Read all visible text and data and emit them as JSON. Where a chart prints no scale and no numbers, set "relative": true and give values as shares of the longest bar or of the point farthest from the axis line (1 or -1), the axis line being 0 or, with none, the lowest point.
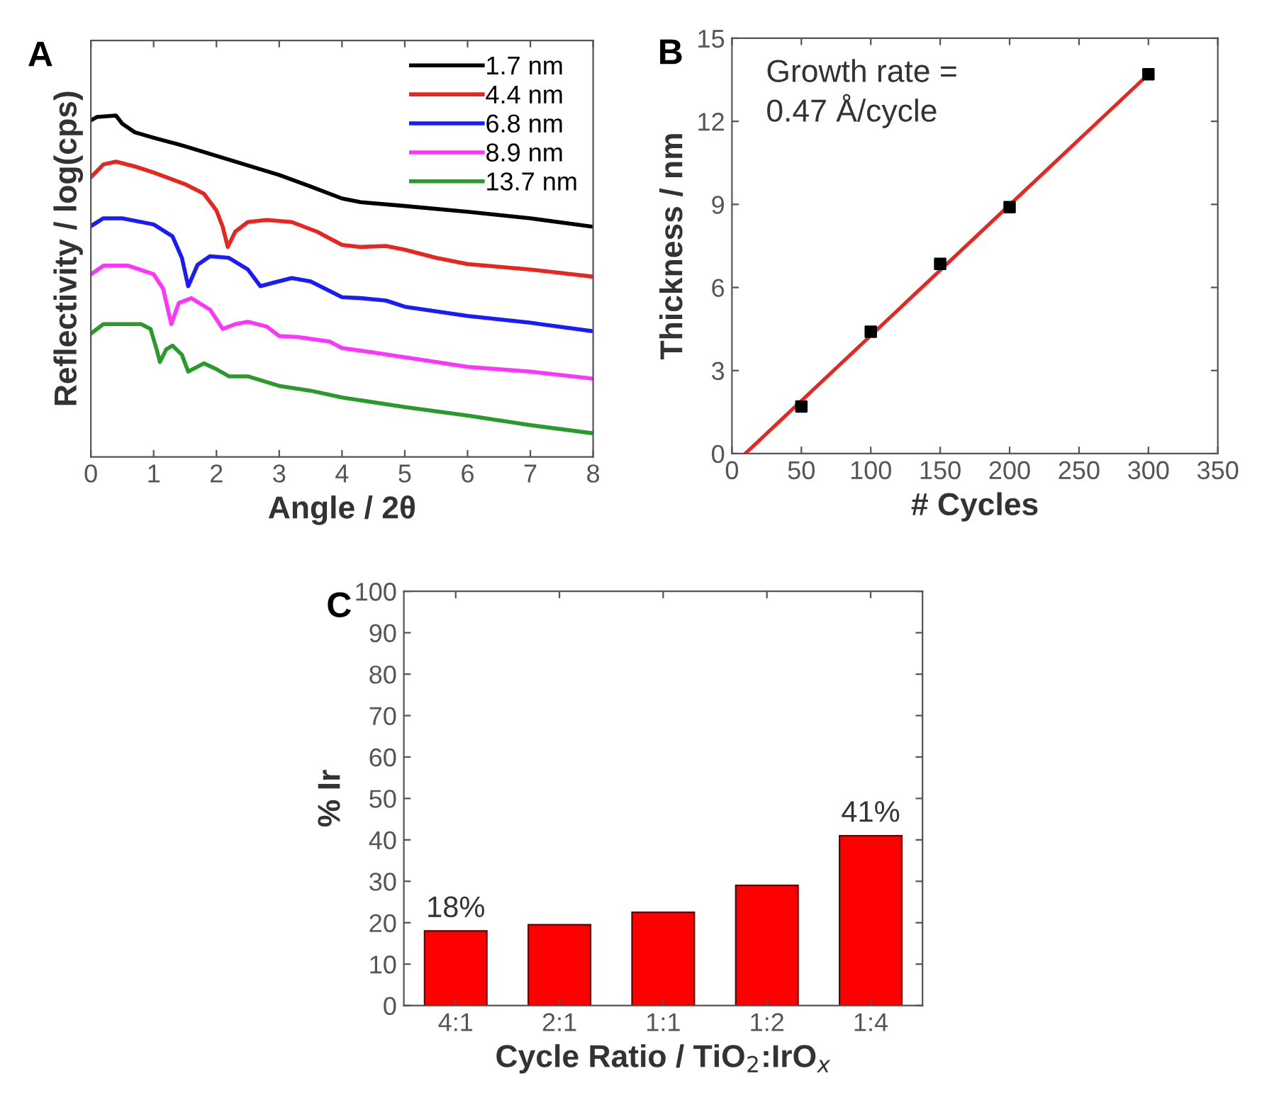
{
  "chart_data": [
    {
      "type": "line",
      "title": "A",
      "xlabel": "Angle / 2θ",
      "ylabel": "Reflectivity / log(cps)",
      "relative": true,
      "tick_labels": "x",
      "xlim": [
        0,
        8
      ],
      "xticks": [
        0,
        1,
        2,
        3,
        4,
        5,
        6,
        7,
        8
      ],
      "legend": "top right",
      "marker": "none",
      "line_style": "solid",
      "series": [
        {
          "name": "1.7 nm",
          "color": "#000000",
          "x": [
            0,
            0.1,
            0.4,
            0.5,
            0.7,
            1,
            1.5,
            2,
            2.5,
            3,
            3.5,
            4,
            4.3,
            5,
            6,
            7,
            8
          ],
          "values": [
            0.986,
            0.996,
            1,
            0.976,
            0.951,
            0.935,
            0.91,
            0.882,
            0.854,
            0.826,
            0.792,
            0.757,
            0.746,
            0.735,
            0.718,
            0.699,
            0.674
          ]
        },
        {
          "name": "4.4 nm",
          "color": "#e8251f",
          "x": [
            0,
            0.2,
            0.4,
            0.7,
            1,
            1.5,
            1.8,
            2,
            2.1,
            2.18,
            2.3,
            2.5,
            2.8,
            3.2,
            3.6,
            4,
            4.3,
            4.7,
            5,
            5.5,
            6,
            7,
            8
          ],
          "values": [
            0.819,
            0.857,
            0.865,
            0.851,
            0.833,
            0.799,
            0.771,
            0.722,
            0.674,
            0.615,
            0.66,
            0.688,
            0.694,
            0.688,
            0.66,
            0.621,
            0.615,
            0.618,
            0.607,
            0.583,
            0.565,
            0.549,
            0.528
          ]
        },
        {
          "name": "6.8 nm",
          "color": "#1a1aff",
          "x": [
            0,
            0.2,
            0.5,
            1,
            1.3,
            1.45,
            1.55,
            1.7,
            1.9,
            2.2,
            2.5,
            2.7,
            2.9,
            3.2,
            3.5,
            4,
            4.3,
            4.7,
            5,
            6,
            7,
            8
          ],
          "values": [
            0.676,
            0.699,
            0.699,
            0.681,
            0.646,
            0.583,
            0.5,
            0.563,
            0.588,
            0.583,
            0.549,
            0.5,
            0.51,
            0.524,
            0.514,
            0.468,
            0.465,
            0.458,
            0.44,
            0.413,
            0.393,
            0.368
          ]
        },
        {
          "name": "8.9 nm",
          "color": "#ff33ff",
          "x": [
            0,
            0.2,
            0.6,
            1,
            1.15,
            1.28,
            1.4,
            1.6,
            1.9,
            2.1,
            2.3,
            2.5,
            2.8,
            3,
            3.3,
            3.8,
            4,
            4.5,
            5,
            6,
            7,
            8
          ],
          "values": [
            0.535,
            0.56,
            0.56,
            0.535,
            0.493,
            0.389,
            0.451,
            0.465,
            0.431,
            0.375,
            0.389,
            0.396,
            0.382,
            0.354,
            0.351,
            0.338,
            0.319,
            0.306,
            0.292,
            0.264,
            0.25,
            0.229
          ]
        },
        {
          "name": "13.7 nm",
          "color": "#2a9a2a",
          "x": [
            0,
            0.2,
            0.8,
            0.95,
            1.05,
            1.1,
            1.2,
            1.3,
            1.45,
            1.55,
            1.8,
            2,
            2.2,
            2.5,
            3,
            3.5,
            4,
            5,
            6,
            7,
            8
          ],
          "values": [
            0.361,
            0.389,
            0.389,
            0.375,
            0.313,
            0.278,
            0.315,
            0.326,
            0.299,
            0.25,
            0.274,
            0.257,
            0.236,
            0.236,
            0.208,
            0.194,
            0.174,
            0.146,
            0.121,
            0.093,
            0.069
          ]
        }
      ]
    },
    {
      "type": "scatter",
      "title": "B",
      "xlabel": "# Cycles",
      "ylabel": "Thickness / nm",
      "xlim": [
        0,
        350
      ],
      "ylim": [
        0,
        15
      ],
      "xticks": [
        0,
        50,
        100,
        150,
        200,
        250,
        300,
        350
      ],
      "yticks": [
        0,
        3,
        6,
        9,
        12,
        15
      ],
      "annotations": [
        "Growth rate =\n0.47 Å/cycle"
      ],
      "series": [
        {
          "color": "#000000",
          "marker": "square",
          "x": [
            50,
            100,
            150,
            200,
            300
          ],
          "values": [
            1.7,
            4.4,
            6.85,
            8.9,
            13.7
          ]
        },
        {
          "type": "line",
          "color": "#e8251f",
          "x": [
            9.6,
            300
          ],
          "values": [
            0,
            13.7
          ]
        }
      ]
    },
    {
      "type": "bar",
      "title": "C",
      "xlabel": "Cycle Ratio / TiO$_{2}$:IrO$_{x}$",
      "ylabel": "% Ir",
      "ylim": [
        0,
        100
      ],
      "yticks": [
        0,
        10,
        20,
        30,
        40,
        50,
        60,
        70,
        80,
        90,
        100
      ],
      "categories": [
        "4:1",
        "2:1",
        "1:1",
        "1:2",
        "1:4"
      ],
      "values": [
        18,
        19.5,
        22.5,
        29,
        41
      ],
      "color": "#ff0000",
      "value_labels": [
        "18%",
        null,
        null,
        null,
        "41%"
      ]
    }
  ]
}
